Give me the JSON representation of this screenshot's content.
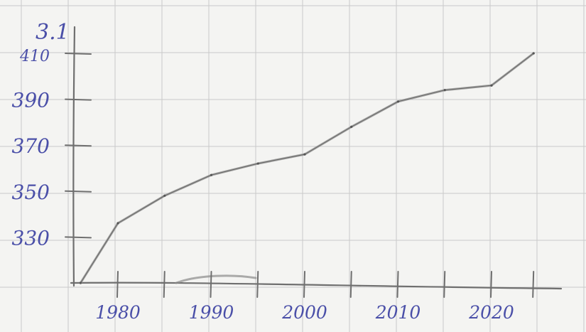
{
  "chart_data": {
    "type": "line",
    "title": "",
    "subtitle": "3.1",
    "xlabel": "",
    "ylabel": "",
    "grid": true,
    "ylim": [
      310,
      415
    ],
    "xlim": [
      1975,
      2025
    ],
    "y_ticks": [
      "330",
      "350",
      "370",
      "390",
      "410"
    ],
    "y_tick_values": [
      330,
      350,
      370,
      390,
      410
    ],
    "x_ticks": [
      "1980",
      "1990",
      "2000",
      "2010",
      "2020"
    ],
    "x_tick_values": [
      1980,
      1990,
      2000,
      2010,
      2020
    ],
    "x_minor_tick_values": [
      1985,
      1995,
      2005,
      2015,
      2024.5
    ],
    "series": [
      {
        "x": [
          1976,
          1980,
          1985,
          1990,
          1995,
          2000,
          2005,
          2010,
          2015,
          2020,
          2024.5
        ],
        "y": [
          310,
          336,
          348,
          357,
          362,
          366,
          378,
          389,
          394,
          396,
          410
        ]
      }
    ],
    "colors": {
      "ink": "#4a4fa8",
      "pencil": "#6f6f6f",
      "grid": "#c9c9c9"
    }
  }
}
